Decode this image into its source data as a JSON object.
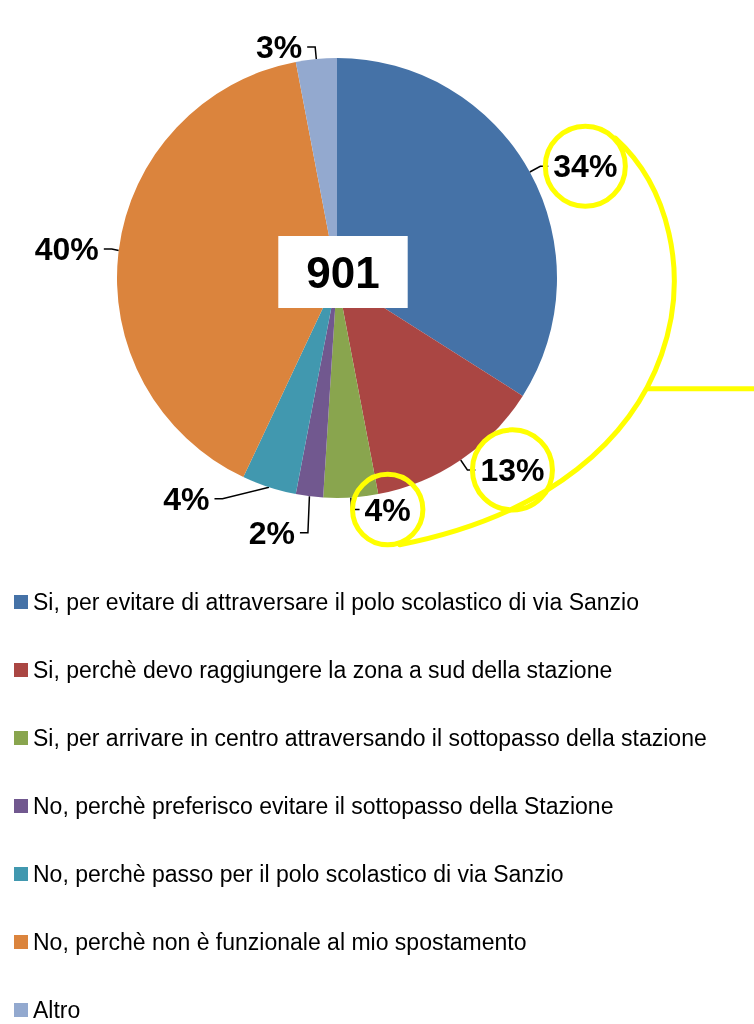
{
  "chart_data": {
    "type": "pie",
    "categories": [
      "Si, per evitare di attraversare il polo scolastico di via Sanzio",
      "Si, perchè devo raggiungere la zona a sud della stazione",
      "Si, per arrivare in centro attraversando il sottopasso della stazione",
      "No, perchè preferisco evitare il sottopasso della Stazione",
      "No, perchè passo per il polo scolastico di via Sanzio",
      "No, perchè non è funzionale al mio spostamento",
      "Altro"
    ],
    "values": [
      34,
      13,
      4,
      2,
      4,
      40,
      3
    ],
    "colors": [
      "#4572a7",
      "#aa4643",
      "#89a54e",
      "#71588f",
      "#4198af",
      "#db843d",
      "#93a9cf"
    ],
    "value_labels": [
      "34%",
      "13%",
      "4%",
      "2%",
      "4%",
      "40%",
      "3%"
    ],
    "annotations": [
      "901"
    ],
    "legend": "bottom"
  }
}
